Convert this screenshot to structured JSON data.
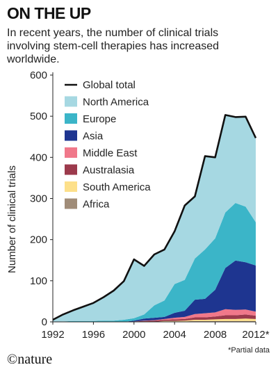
{
  "header": {
    "title": "ON THE UP",
    "subtitle": "In recent years, the number of clinical trials involving stem-cell therapies has increased worldwide."
  },
  "footnote": "*Partial data",
  "brand": "©nature",
  "chart_data": {
    "type": "area",
    "stacked": true,
    "ylabel": "Number of clinical trials",
    "xlabel": "",
    "ylim": [
      0,
      600
    ],
    "xlim": [
      1992,
      2012
    ],
    "yticks": [
      0,
      100,
      200,
      300,
      400,
      500,
      600
    ],
    "xticks": [
      "1992",
      "1996",
      "2000",
      "2004",
      "2008",
      "2012*"
    ],
    "x": [
      1992,
      1993,
      1994,
      1995,
      1996,
      1997,
      1998,
      1999,
      2000,
      2001,
      2002,
      2003,
      2004,
      2005,
      2006,
      2007,
      2008,
      2009,
      2010,
      2011,
      2012
    ],
    "grid": false,
    "legend_position": "top-left",
    "series": [
      {
        "name": "Africa",
        "color": "#a08c78",
        "values": [
          0,
          0,
          0,
          0,
          0,
          0,
          0,
          0,
          0,
          0,
          0,
          1,
          1,
          1,
          2,
          2,
          2,
          2,
          2,
          2,
          2
        ]
      },
      {
        "name": "South America",
        "color": "#fde08a",
        "values": [
          0,
          0,
          0,
          0,
          0,
          0,
          0,
          0,
          0,
          0,
          0,
          1,
          1,
          2,
          3,
          3,
          4,
          5,
          5,
          6,
          5
        ]
      },
      {
        "name": "Australasia",
        "color": "#9c3a4c",
        "values": [
          0,
          0,
          0,
          0,
          0,
          0,
          0,
          0,
          1,
          2,
          3,
          3,
          4,
          4,
          6,
          6,
          7,
          9,
          9,
          10,
          8
        ]
      },
      {
        "name": "Middle East",
        "color": "#f0788a",
        "values": [
          0,
          0,
          0,
          0,
          0,
          0,
          0,
          0,
          0,
          1,
          1,
          2,
          4,
          5,
          8,
          10,
          10,
          15,
          13,
          12,
          10
        ]
      },
      {
        "name": "Asia",
        "color": "#1e3590",
        "values": [
          0,
          0,
          0,
          0,
          0,
          0,
          0,
          0,
          2,
          5,
          6,
          5,
          12,
          15,
          35,
          35,
          55,
          100,
          120,
          115,
          112
        ]
      },
      {
        "name": "Europe",
        "color": "#3bb5c8",
        "values": [
          0,
          1,
          2,
          2,
          2,
          3,
          3,
          5,
          6,
          10,
          30,
          40,
          70,
          75,
          100,
          120,
          125,
          135,
          140,
          135,
          105
        ]
      },
      {
        "name": "North America",
        "color": "#a6d8e2",
        "values": [
          5,
          17,
          26,
          35,
          44,
          57,
          73,
          94,
          143,
          118,
          124,
          124,
          128,
          181,
          151,
          227,
          197,
          237,
          209,
          219,
          205
        ]
      }
    ],
    "total": {
      "name": "Global total",
      "color": "#111111",
      "values": [
        5,
        18,
        28,
        37,
        46,
        60,
        76,
        99,
        152,
        136,
        164,
        176,
        220,
        283,
        305,
        403,
        400,
        503,
        498,
        499,
        447
      ]
    }
  }
}
